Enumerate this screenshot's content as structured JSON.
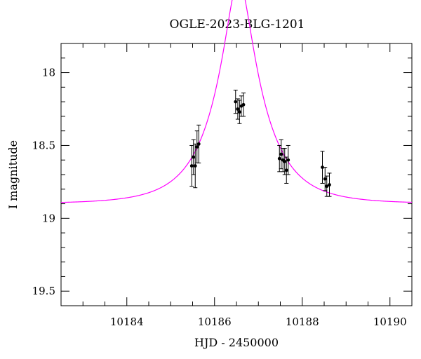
{
  "chart_data": {
    "type": "scatter",
    "title": "OGLE-2023-BLG-1201",
    "xlabel": "HJD - 2450000",
    "ylabel": "I magnitude",
    "xlim": [
      10182.5,
      10190.5
    ],
    "ylim": [
      19.6,
      17.8
    ],
    "y_inverted": true,
    "grid": false,
    "x_major_ticks": [
      10184,
      10186,
      10188,
      10190
    ],
    "x_tick_labels": [
      "10184",
      "10186",
      "10188",
      "10190"
    ],
    "y_major_ticks": [
      18,
      18.5,
      19,
      19.5
    ],
    "y_tick_labels": [
      "18",
      "18.5",
      "19",
      "19.5"
    ],
    "model_color": "#ff00ff",
    "point_color": "#000000",
    "model": {
      "t0": 10186.55,
      "u0": 0.25,
      "tE": 1.1,
      "baseline_mag": 18.9
    },
    "points": [
      {
        "x": 10185.48,
        "y": 18.64,
        "err": 0.14
      },
      {
        "x": 10185.52,
        "y": 18.58,
        "err": 0.12
      },
      {
        "x": 10185.56,
        "y": 18.64,
        "err": 0.15
      },
      {
        "x": 10185.6,
        "y": 18.51,
        "err": 0.11
      },
      {
        "x": 10185.64,
        "y": 18.49,
        "err": 0.13
      },
      {
        "x": 10186.48,
        "y": 18.2,
        "err": 0.08
      },
      {
        "x": 10186.53,
        "y": 18.25,
        "err": 0.07
      },
      {
        "x": 10186.57,
        "y": 18.27,
        "err": 0.08
      },
      {
        "x": 10186.61,
        "y": 18.23,
        "err": 0.07
      },
      {
        "x": 10186.66,
        "y": 18.22,
        "err": 0.08
      },
      {
        "x": 10187.48,
        "y": 18.59,
        "err": 0.09
      },
      {
        "x": 10187.52,
        "y": 18.56,
        "err": 0.1
      },
      {
        "x": 10187.56,
        "y": 18.6,
        "err": 0.08
      },
      {
        "x": 10187.6,
        "y": 18.61,
        "err": 0.09
      },
      {
        "x": 10187.64,
        "y": 18.67,
        "err": 0.09
      },
      {
        "x": 10187.68,
        "y": 18.6,
        "err": 0.1
      },
      {
        "x": 10188.46,
        "y": 18.65,
        "err": 0.11
      },
      {
        "x": 10188.52,
        "y": 18.73,
        "err": 0.08
      },
      {
        "x": 10188.56,
        "y": 18.78,
        "err": 0.07
      },
      {
        "x": 10188.62,
        "y": 18.77,
        "err": 0.08
      }
    ]
  }
}
